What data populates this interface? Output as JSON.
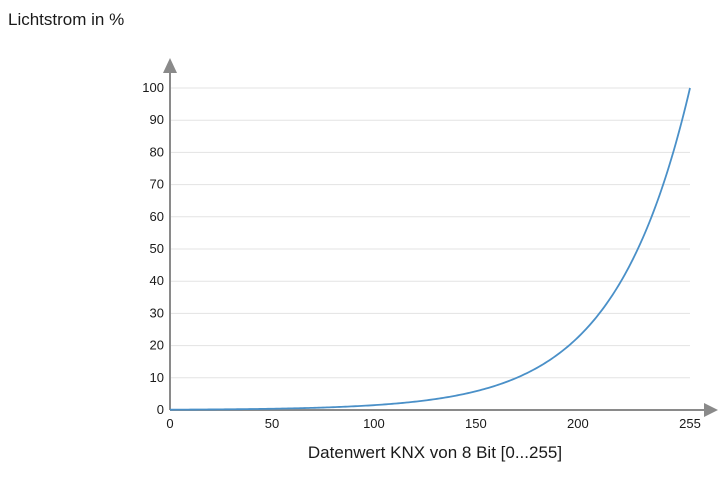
{
  "chart_data": {
    "type": "line",
    "title": "",
    "ylabel": "Lichtstrom in %",
    "xlabel": "Datenwert KNX von 8 Bit [0...255]",
    "xlim": [
      0,
      255
    ],
    "ylim": [
      0,
      100
    ],
    "x_ticks": [
      "0",
      "50",
      "100",
      "150",
      "200",
      "255"
    ],
    "y_ticks": [
      "0",
      "10",
      "20",
      "30",
      "40",
      "50",
      "60",
      "70",
      "80",
      "90",
      "100"
    ],
    "grid": "horizontal",
    "legend": "none",
    "series": [
      {
        "color": "#4a90c8",
        "x": [
          0,
          25,
          50,
          75,
          100,
          125,
          150,
          160,
          170,
          180,
          190,
          200,
          210,
          220,
          230,
          240,
          250,
          255
        ],
        "y": [
          0.1,
          0.2,
          0.4,
          0.8,
          1.5,
          3.0,
          6.0,
          8.1,
          10.9,
          14.6,
          19.6,
          26.4,
          35.5,
          47.7,
          64.0,
          86.0,
          100,
          100
        ]
      }
    ],
    "axis_color": "#8a8a8a",
    "grid_color": "#e3e3e3"
  }
}
